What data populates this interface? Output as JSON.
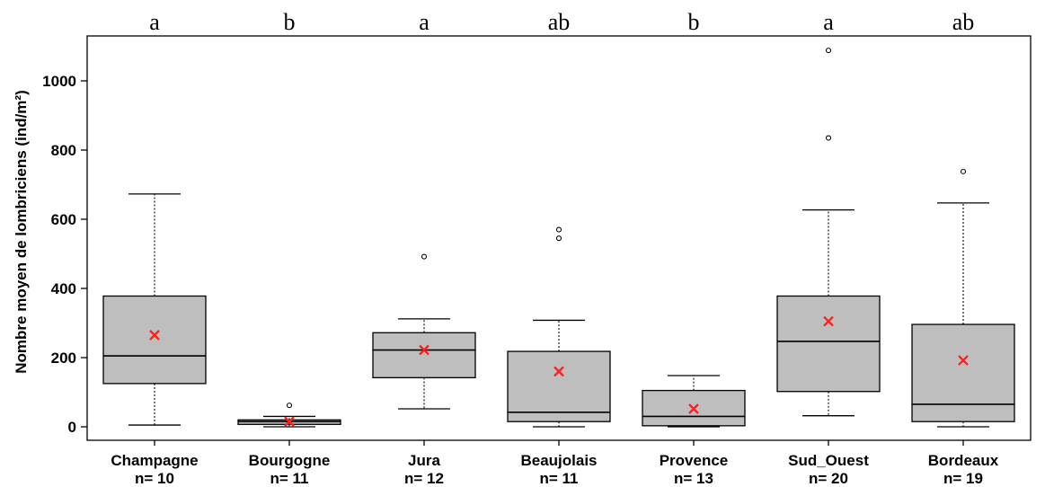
{
  "chart_data": {
    "type": "boxplot",
    "ylabel": "Nombre moyen de lombriciens (ind/m²)",
    "ylim": [
      0,
      1100
    ],
    "yticks": [
      0,
      200,
      400,
      600,
      800,
      1000
    ],
    "colors": {
      "box": "#bebebe",
      "mean": "#ff2020",
      "line": "#000000"
    },
    "mean_symbol": "x",
    "categories": [
      {
        "name": "Champagne",
        "n": "n= 10",
        "letter": "a",
        "min": 5,
        "q1": 125,
        "median": 205,
        "q3": 378,
        "max": 673,
        "mean": 265,
        "outliers": []
      },
      {
        "name": "Bourgogne",
        "n": "n= 11",
        "letter": "b",
        "min": 0,
        "q1": 7,
        "median": 15,
        "q3": 20,
        "max": 30,
        "mean": 15,
        "outliers": [
          62
        ]
      },
      {
        "name": "Jura",
        "n": "n= 12",
        "letter": "a",
        "min": 52,
        "q1": 142,
        "median": 222,
        "q3": 272,
        "max": 312,
        "mean": 222,
        "outliers": [
          492
        ]
      },
      {
        "name": "Beaujolais",
        "n": "n= 11",
        "letter": "ab",
        "min": 0,
        "q1": 15,
        "median": 42,
        "q3": 218,
        "max": 308,
        "mean": 160,
        "outliers": [
          545,
          570
        ]
      },
      {
        "name": "Provence",
        "n": "n= 13",
        "letter": "b",
        "min": 0,
        "q1": 3,
        "median": 30,
        "q3": 105,
        "max": 148,
        "mean": 52,
        "outliers": []
      },
      {
        "name": "Sud_Ouest",
        "n": "n= 20",
        "letter": "a",
        "min": 32,
        "q1": 102,
        "median": 247,
        "q3": 378,
        "max": 627,
        "mean": 305,
        "outliers": [
          835,
          1088
        ]
      },
      {
        "name": "Bordeaux",
        "n": "n= 19",
        "letter": "ab",
        "min": 0,
        "q1": 15,
        "median": 65,
        "q3": 296,
        "max": 647,
        "mean": 192,
        "outliers": [
          738
        ]
      }
    ]
  }
}
